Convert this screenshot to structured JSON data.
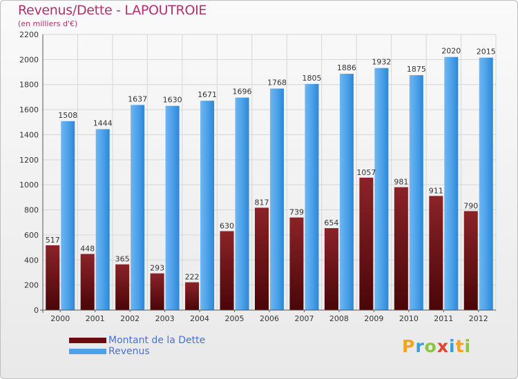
{
  "header": {
    "title": "Revenus/Dette - LAPOUTROIE",
    "subtitle": "(en milliers d'€)"
  },
  "colors": {
    "title": "#b0306f",
    "debt": "#7a1418",
    "revenue": "#4ea1e6",
    "legend_text": "#4a6fd6"
  },
  "legend": {
    "items": [
      {
        "label": "Montant de la Dette",
        "color": "#6a0d10"
      },
      {
        "label": "Revenus",
        "color": "#4ea1e6"
      }
    ]
  },
  "logo": {
    "letters": [
      {
        "ch": "P",
        "color": "#f2a322"
      },
      {
        "ch": "r",
        "color": "#3a9fd8"
      },
      {
        "ch": "o",
        "color": "#8cc63f"
      },
      {
        "ch": "x",
        "color": "#e8402f"
      },
      {
        "ch": "i",
        "color": "#3a9fd8"
      },
      {
        "ch": "t",
        "color": "#f2a322"
      },
      {
        "ch": "i",
        "color": "#8cc63f"
      }
    ]
  },
  "chart_data": {
    "type": "bar",
    "title": "Revenus/Dette - LAPOUTROIE",
    "subtitle": "(en milliers d'€)",
    "xlabel": "",
    "ylabel": "",
    "categories": [
      "2000",
      "2001",
      "2002",
      "2003",
      "2004",
      "2005",
      "2006",
      "2007",
      "2008",
      "2009",
      "2010",
      "2011",
      "2012"
    ],
    "series": [
      {
        "name": "Montant de la Dette",
        "values": [
          517,
          448,
          365,
          293,
          222,
          630,
          817,
          739,
          654,
          1057,
          981,
          911,
          790
        ]
      },
      {
        "name": "Revenus",
        "values": [
          1508,
          1444,
          1637,
          1630,
          1671,
          1696,
          1768,
          1805,
          1886,
          1932,
          1875,
          2020,
          2015
        ]
      }
    ],
    "data_labels": {
      "Montant de la Dette": [
        "517",
        "448",
        "365",
        "293",
        "222",
        "630",
        "817",
        "739",
        "654",
        "1057",
        "981",
        "911",
        "790"
      ],
      "Revenus": [
        "1508",
        "1444",
        "1637",
        "1630",
        "1671",
        "1696",
        "1768",
        "1805",
        "1886",
        "1932",
        "1875",
        "2020",
        "2015"
      ]
    },
    "ylim": [
      0,
      2200
    ],
    "yticks": [
      0,
      200,
      400,
      600,
      800,
      1000,
      1200,
      1400,
      1600,
      1800,
      2000,
      2200
    ],
    "grid": true,
    "legend_position": "bottom-left"
  }
}
